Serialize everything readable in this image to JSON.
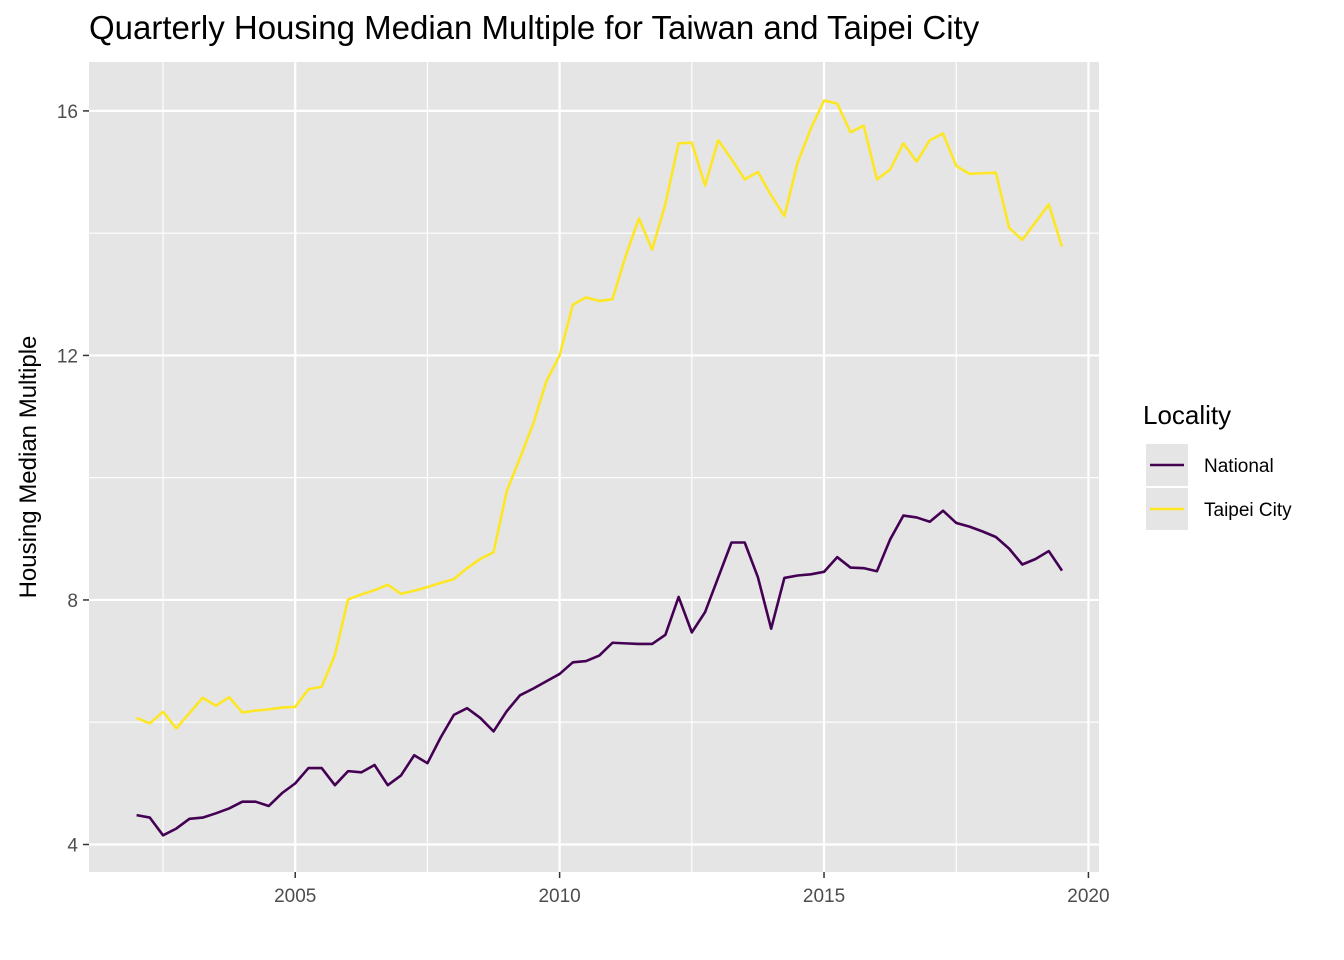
{
  "chart_data": {
    "type": "line",
    "title": "Quarterly Housing Median Multiple for Taiwan and Taipei City",
    "xlabel": "",
    "ylabel": "Housing Median Multiple",
    "xlim": [
      2001.1,
      2020.2
    ],
    "ylim": [
      3.55,
      16.8
    ],
    "x_ticks": [
      2005,
      2010,
      2015,
      2020
    ],
    "y_ticks": [
      4,
      8,
      12,
      16
    ],
    "grid": true,
    "legend": {
      "title": "Locality",
      "position": "right"
    },
    "x": [
      2002.0,
      2002.25,
      2002.5,
      2002.75,
      2003.0,
      2003.25,
      2003.5,
      2003.75,
      2004.0,
      2004.25,
      2004.5,
      2004.75,
      2005.0,
      2005.25,
      2005.5,
      2005.75,
      2006.0,
      2006.25,
      2006.5,
      2006.75,
      2007.0,
      2007.25,
      2007.5,
      2007.75,
      2008.0,
      2008.25,
      2008.5,
      2008.75,
      2009.0,
      2009.25,
      2009.5,
      2009.75,
      2010.0,
      2010.25,
      2010.5,
      2010.75,
      2011.0,
      2011.25,
      2011.5,
      2011.75,
      2012.0,
      2012.25,
      2012.5,
      2012.75,
      2013.0,
      2013.25,
      2013.5,
      2013.75,
      2014.0,
      2014.25,
      2014.5,
      2014.75,
      2015.0,
      2015.25,
      2015.5,
      2015.75,
      2016.0,
      2016.25,
      2016.5,
      2016.75,
      2017.0,
      2017.25,
      2017.5,
      2017.75,
      2018.0,
      2018.25,
      2018.5,
      2018.75,
      2019.0,
      2019.25,
      2019.5
    ],
    "series": [
      {
        "name": "National",
        "color": "#440154",
        "values": [
          4.48,
          4.44,
          4.15,
          4.26,
          4.42,
          4.44,
          4.51,
          4.59,
          4.7,
          4.7,
          4.63,
          4.84,
          5.0,
          5.25,
          5.25,
          4.97,
          5.2,
          5.18,
          5.3,
          4.97,
          5.13,
          5.46,
          5.33,
          5.75,
          6.12,
          6.23,
          6.07,
          5.85,
          6.18,
          6.44,
          6.55,
          6.67,
          6.79,
          6.98,
          7.0,
          7.09,
          7.3,
          7.29,
          7.28,
          7.28,
          7.43,
          8.05,
          7.47,
          7.8,
          8.37,
          8.94,
          8.94,
          8.37,
          7.53,
          8.36,
          8.4,
          8.42,
          8.46,
          8.7,
          8.53,
          8.52,
          8.47,
          8.99,
          9.38,
          9.35,
          9.28,
          9.46,
          9.26,
          9.2,
          9.12,
          9.03,
          8.84,
          8.58,
          8.67,
          8.8,
          8.48
        ]
      },
      {
        "name": "Taipei City",
        "color": "#fde725",
        "values": [
          6.07,
          5.98,
          6.17,
          5.9,
          6.15,
          6.4,
          6.27,
          6.41,
          6.16,
          6.19,
          6.21,
          6.24,
          6.25,
          6.54,
          6.58,
          7.1,
          8.01,
          8.09,
          8.16,
          8.25,
          8.1,
          8.15,
          8.21,
          8.28,
          8.34,
          8.52,
          8.67,
          8.78,
          9.78,
          10.32,
          10.88,
          11.58,
          12.0,
          12.83,
          12.95,
          12.89,
          12.92,
          13.63,
          14.24,
          13.73,
          14.48,
          15.47,
          15.48,
          14.78,
          15.52,
          15.21,
          14.88,
          15.0,
          14.62,
          14.28,
          15.15,
          15.71,
          16.17,
          16.12,
          15.65,
          15.76,
          14.88,
          15.04,
          15.47,
          15.17,
          15.52,
          15.63,
          15.1,
          14.97,
          14.98,
          14.99,
          14.09,
          13.89,
          14.18,
          14.47,
          13.78
        ]
      }
    ]
  }
}
